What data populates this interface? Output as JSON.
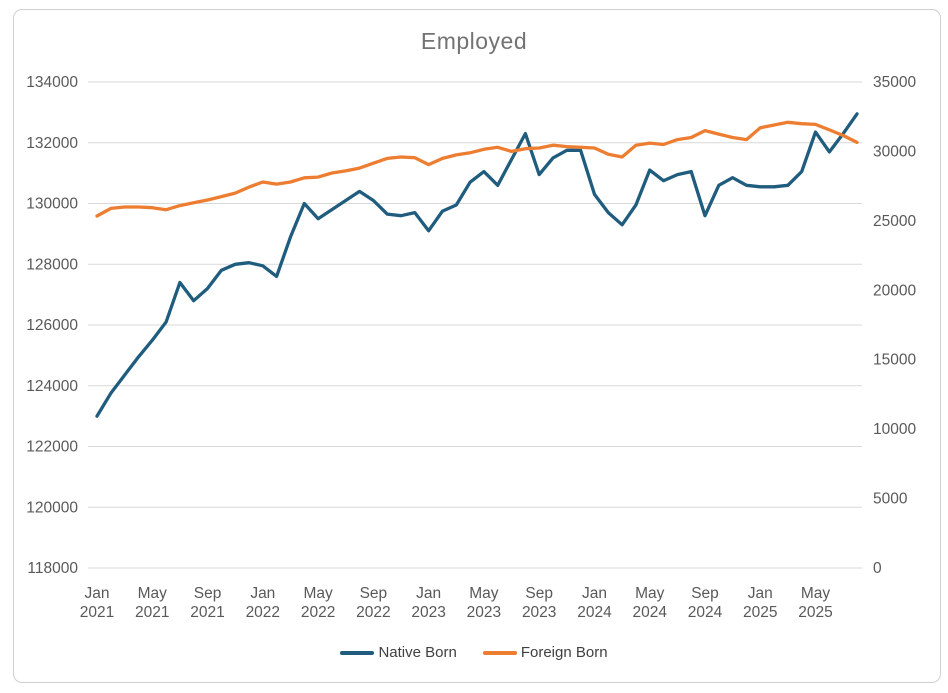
{
  "chart_data": {
    "type": "line",
    "title": "Employed",
    "gridlines": "horizontal",
    "legend_position": "bottom",
    "colors": {
      "native_born": "#1F5C7D",
      "foreign_born": "#ED7D31",
      "gridline": "#D9D9D9",
      "axis_text": "#595959",
      "title_text": "#737373",
      "legend_text": "#404040",
      "border": "#D2CFCF"
    },
    "left_axis": {
      "min": 118000,
      "max": 134000,
      "step": 2000,
      "tick_labels": [
        "134000",
        "132000",
        "130000",
        "128000",
        "126000",
        "124000",
        "122000",
        "120000",
        "118000"
      ]
    },
    "right_axis": {
      "min": 0,
      "max": 35000,
      "step": 5000,
      "tick_labels": [
        "35000",
        "30000",
        "25000",
        "20000",
        "15000",
        "10000",
        "5000",
        "0"
      ]
    },
    "x_tick_every": 4,
    "x_tick_labels": [
      {
        "month": "Jan",
        "year": "2021"
      },
      {
        "month": "May",
        "year": "2021"
      },
      {
        "month": "Sep",
        "year": "2021"
      },
      {
        "month": "Jan",
        "year": "2022"
      },
      {
        "month": "May",
        "year": "2022"
      },
      {
        "month": "Sep",
        "year": "2022"
      },
      {
        "month": "Jan",
        "year": "2023"
      },
      {
        "month": "May",
        "year": "2023"
      },
      {
        "month": "Sep",
        "year": "2023"
      },
      {
        "month": "Jan",
        "year": "2024"
      },
      {
        "month": "May",
        "year": "2024"
      },
      {
        "month": "Sep",
        "year": "2024"
      },
      {
        "month": "Jan",
        "year": "2025"
      },
      {
        "month": "May",
        "year": "2025"
      }
    ],
    "categories": [
      "Jan 2021",
      "Feb 2021",
      "Mar 2021",
      "Apr 2021",
      "May 2021",
      "Jun 2021",
      "Jul 2021",
      "Aug 2021",
      "Sep 2021",
      "Oct 2021",
      "Nov 2021",
      "Dec 2021",
      "Jan 2022",
      "Feb 2022",
      "Mar 2022",
      "Apr 2022",
      "May 2022",
      "Jun 2022",
      "Jul 2022",
      "Aug 2022",
      "Sep 2022",
      "Oct 2022",
      "Nov 2022",
      "Dec 2022",
      "Jan 2023",
      "Feb 2023",
      "Mar 2023",
      "Apr 2023",
      "May 2023",
      "Jun 2023",
      "Jul 2023",
      "Aug 2023",
      "Sep 2023",
      "Oct 2023",
      "Nov 2023",
      "Dec 2023",
      "Jan 2024",
      "Feb 2024",
      "Mar 2024",
      "Apr 2024",
      "May 2024",
      "Jun 2024",
      "Jul 2024",
      "Aug 2024",
      "Sep 2024",
      "Oct 2024",
      "Nov 2024",
      "Dec 2024",
      "Jan 2025",
      "Feb 2025",
      "Mar 2025",
      "Apr 2025",
      "May 2025",
      "Jun 2025",
      "Jul 2025",
      "Aug 2025"
    ],
    "series": [
      {
        "name": "Native Born",
        "axis": "left",
        "color": "#1F5C7D",
        "values": [
          123000,
          123750,
          124350,
          124950,
          125500,
          126100,
          127400,
          126800,
          127200,
          127800,
          128000,
          128050,
          127950,
          127600,
          128900,
          130000,
          129500,
          129800,
          130100,
          130400,
          130100,
          129650,
          129600,
          129700,
          129100,
          129750,
          129950,
          130700,
          131050,
          130600,
          131450,
          132300,
          130950,
          131500,
          131750,
          131750,
          130300,
          129700,
          129300,
          129950,
          131100,
          130750,
          130950,
          131050,
          129600,
          130600,
          130850,
          130600,
          130550,
          130550,
          130600,
          131050,
          132350,
          131700,
          132300,
          132950
        ]
      },
      {
        "name": "Foreign Born",
        "axis": "right",
        "color": "#ED7D31",
        "values": [
          25350,
          25900,
          26000,
          26000,
          25950,
          25800,
          26100,
          26300,
          26500,
          26750,
          27000,
          27430,
          27800,
          27650,
          27800,
          28100,
          28150,
          28450,
          28600,
          28800,
          29150,
          29500,
          29600,
          29550,
          29050,
          29500,
          29750,
          29900,
          30150,
          30300,
          30000,
          30200,
          30250,
          30450,
          30350,
          30300,
          30250,
          29800,
          29600,
          30450,
          30600,
          30500,
          30850,
          31000,
          31500,
          31250,
          31000,
          30850,
          31700,
          31900,
          32100,
          32000,
          31950,
          31550,
          31150,
          30650
        ]
      }
    ]
  },
  "legend": {
    "native_label": "Native Born",
    "foreign_label": "Foreign Born"
  }
}
